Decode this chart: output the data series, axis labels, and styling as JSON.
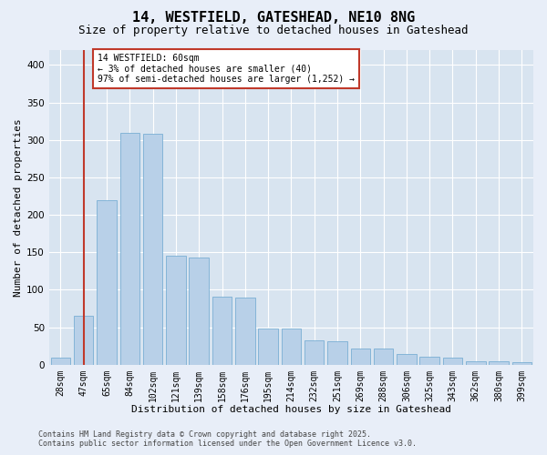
{
  "title1": "14, WESTFIELD, GATESHEAD, NE10 8NG",
  "title2": "Size of property relative to detached houses in Gateshead",
  "xlabel": "Distribution of detached houses by size in Gateshead",
  "ylabel": "Number of detached properties",
  "categories": [
    "28sqm",
    "47sqm",
    "65sqm",
    "84sqm",
    "102sqm",
    "121sqm",
    "139sqm",
    "158sqm",
    "176sqm",
    "195sqm",
    "214sqm",
    "232sqm",
    "251sqm",
    "269sqm",
    "288sqm",
    "306sqm",
    "325sqm",
    "343sqm",
    "362sqm",
    "380sqm",
    "399sqm"
  ],
  "values": [
    9,
    65,
    220,
    310,
    308,
    145,
    143,
    91,
    90,
    48,
    48,
    32,
    31,
    22,
    21,
    14,
    10,
    9,
    5,
    5,
    3
  ],
  "bar_color": "#b8d0e8",
  "bar_edgecolor": "#7aafd4",
  "vline_color": "#c0392b",
  "vline_x": 1.5,
  "annotation_title": "14 WESTFIELD: 60sqm",
  "annotation_line1": "← 3% of detached houses are smaller (40)",
  "annotation_line2": "97% of semi-detached houses are larger (1,252) →",
  "annotation_box_edgecolor": "#c0392b",
  "bg_color": "#e8eef8",
  "plot_bg_color": "#d8e4f0",
  "grid_color": "#ffffff",
  "footer1": "Contains HM Land Registry data © Crown copyright and database right 2025.",
  "footer2": "Contains public sector information licensed under the Open Government Licence v3.0.",
  "ylim": [
    0,
    420
  ],
  "yticks": [
    0,
    50,
    100,
    150,
    200,
    250,
    300,
    350,
    400
  ],
  "title1_fontsize": 11,
  "title2_fontsize": 9,
  "xlabel_fontsize": 8,
  "ylabel_fontsize": 8,
  "tick_fontsize": 7,
  "footer_fontsize": 6
}
